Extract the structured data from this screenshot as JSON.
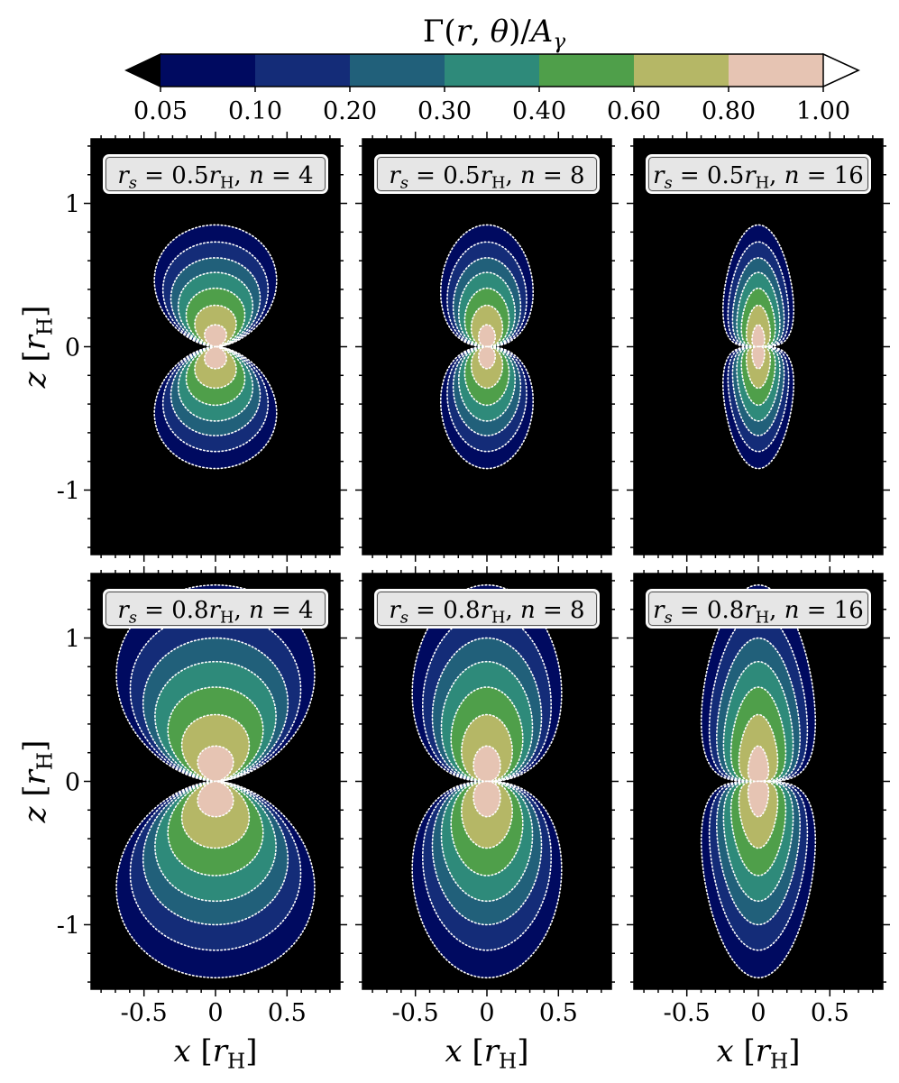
{
  "chart_data": {
    "type": "contour",
    "colorbar": {
      "title": "Γ(r,θ)/A_γ",
      "levels": [
        0.05,
        0.1,
        0.2,
        0.3,
        0.4,
        0.6,
        0.8,
        1.0
      ],
      "tick_labels": [
        "0.05",
        "0.10",
        "0.20",
        "0.30",
        "0.40",
        "0.60",
        "0.80",
        "1.00"
      ],
      "colors": [
        "#000a60",
        "#142c78",
        "#21607a",
        "#2e8a7a",
        "#4f9f4a",
        "#b5b766",
        "#e6c4b3"
      ],
      "under_color": "#000000",
      "over_color": "#ffffff",
      "extend": "both"
    },
    "background_color": "#000000",
    "contour_line_color": "#ffffff",
    "contour_line_style": "dotted",
    "x_axis": {
      "label": "x [r_H]",
      "range": [
        -0.87,
        0.87
      ],
      "ticks": [
        -0.5,
        0,
        0.5
      ],
      "tick_labels": [
        "-0.5",
        "0",
        "0.5"
      ]
    },
    "z_axis": {
      "label": "z [r_H]",
      "range": [
        -1.45,
        1.45
      ],
      "ticks": [
        -1,
        0,
        1
      ],
      "tick_labels": [
        "-1",
        "0",
        "1"
      ]
    },
    "panels": [
      {
        "label": "r_s = 0.5r_H, n = 4",
        "r_s": 0.5,
        "n": 4,
        "outer_extent_z": 0.85,
        "outer_extent_x": 0.45
      },
      {
        "label": "r_s = 0.5r_H, n = 8",
        "r_s": 0.5,
        "n": 8,
        "outer_extent_z": 0.85,
        "outer_extent_x": 0.34
      },
      {
        "label": "r_s = 0.5r_H, n = 16",
        "r_s": 0.5,
        "n": 16,
        "outer_extent_z": 0.85,
        "outer_extent_x": 0.26
      },
      {
        "label": "r_s = 0.8r_H, n = 4",
        "r_s": 0.8,
        "n": 4,
        "outer_extent_z": 1.37,
        "outer_extent_x": 0.73
      },
      {
        "label": "r_s = 0.8r_H, n = 8",
        "r_s": 0.8,
        "n": 8,
        "outer_extent_z": 1.37,
        "outer_extent_x": 0.55
      },
      {
        "label": "r_s = 0.8r_H, n = 16",
        "r_s": 0.8,
        "n": 16,
        "outer_extent_z": 1.37,
        "outer_extent_x": 0.42
      }
    ]
  }
}
